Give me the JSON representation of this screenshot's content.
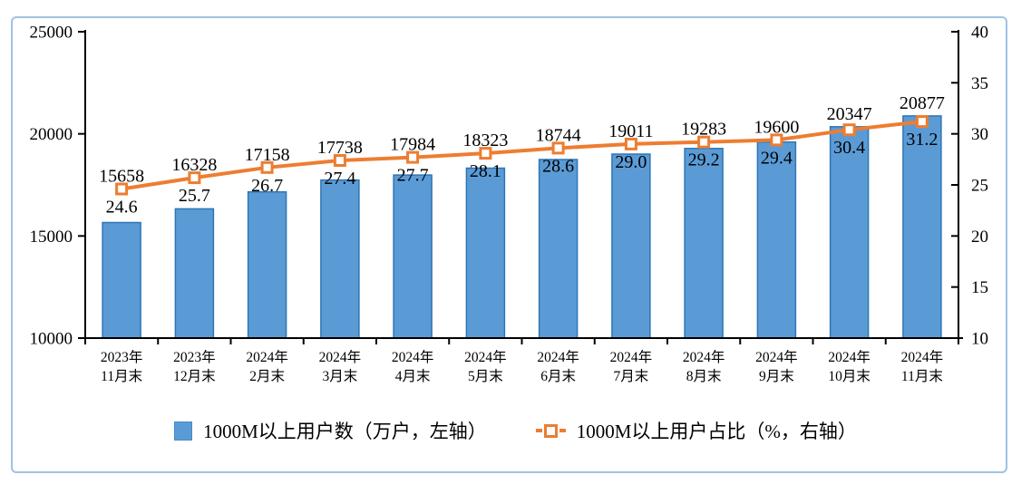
{
  "chart_data": {
    "type": "bar",
    "subtype": "combo-bar-line",
    "categories": [
      [
        "2023年",
        "11月末"
      ],
      [
        "2023年",
        "12月末"
      ],
      [
        "2024年",
        "2月末"
      ],
      [
        "2024年",
        "3月末"
      ],
      [
        "2024年",
        "4月末"
      ],
      [
        "2024年",
        "5月末"
      ],
      [
        "2024年",
        "6月末"
      ],
      [
        "2024年",
        "7月末"
      ],
      [
        "2024年",
        "8月末"
      ],
      [
        "2024年",
        "9月末"
      ],
      [
        "2024年",
        "10月末"
      ],
      [
        "2024年",
        "11月末"
      ]
    ],
    "series": [
      {
        "name": "1000M以上用户数（万户，左轴）",
        "type": "bar",
        "axis": "left",
        "values": [
          15658,
          16328,
          17158,
          17738,
          17984,
          18323,
          18744,
          19011,
          19283,
          19600,
          20347,
          20877
        ],
        "fill": "#5B9BD5",
        "border": "#2E75B6"
      },
      {
        "name": "1000M以上用户占比（%，右轴）",
        "type": "line",
        "axis": "right",
        "values": [
          24.6,
          25.7,
          26.7,
          27.4,
          27.7,
          28.1,
          28.6,
          29.0,
          29.2,
          29.4,
          30.4,
          31.2
        ],
        "color": "#ED7D31",
        "marker": "open-square"
      }
    ],
    "left_axis": {
      "min": 10000,
      "max": 25000,
      "ticks": [
        10000,
        15000,
        20000,
        25000
      ]
    },
    "right_axis": {
      "min": 10,
      "max": 40,
      "ticks": [
        10,
        15,
        20,
        25,
        30,
        35,
        40
      ]
    },
    "grid": false,
    "legend_position": "bottom",
    "title": ""
  },
  "legend": {
    "items": [
      {
        "label": "1000M以上用户数（万户，左轴）",
        "swatch": "bar"
      },
      {
        "label": "1000M以上用户占比（%，右轴）",
        "swatch": "line-marker"
      }
    ]
  },
  "colors": {
    "bar_fill": "#5B9BD5",
    "bar_border": "#2E75B6",
    "line": "#ED7D31",
    "figure_border": "#9DC3E6",
    "axis": "#000000",
    "text": "#000000"
  }
}
